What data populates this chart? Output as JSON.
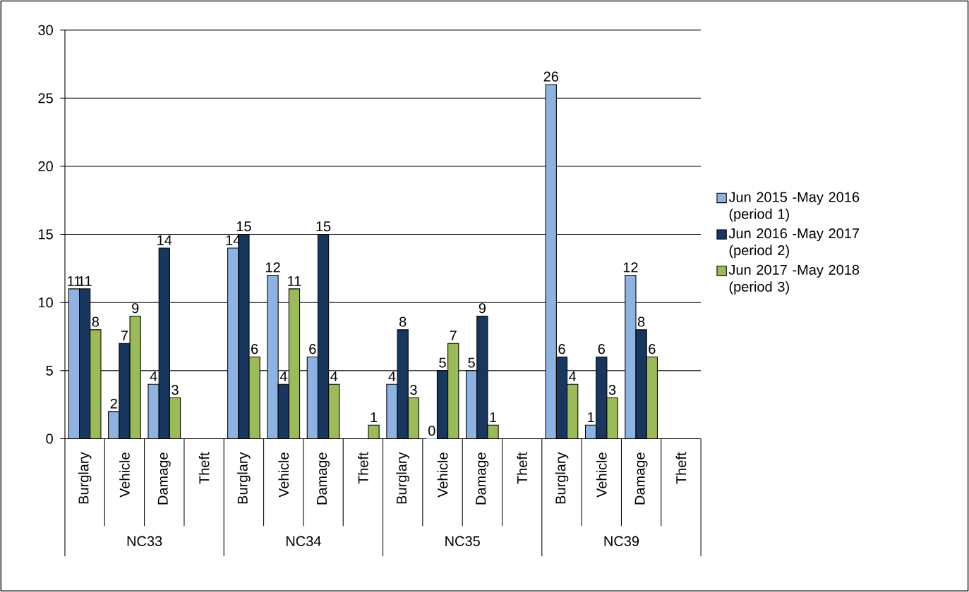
{
  "chart_data": {
    "type": "bar",
    "categories": [
      "Burglary",
      "Vehicle",
      "Damage",
      "Theft",
      "Burglary",
      "Vehicle",
      "Damage",
      "Theft",
      "Burglary",
      "Vehicle",
      "Damage",
      "Theft",
      "Burglary",
      "Vehicle",
      "Damage",
      "Theft"
    ],
    "annotations": [
      "NC33",
      "NC34",
      "NC35",
      "NC39"
    ],
    "series": [
      {
        "name": "Jun 2015 -May 2016 (period 1)",
        "color": "#8db3e2",
        "values": [
          11,
          2,
          4,
          null,
          14,
          12,
          6,
          null,
          4,
          0,
          5,
          null,
          26,
          1,
          12,
          null
        ]
      },
      {
        "name": "Jun 2016 -May 2017 (period 2)",
        "color": "#17375e",
        "values": [
          11,
          7,
          14,
          null,
          15,
          4,
          15,
          null,
          8,
          5,
          9,
          null,
          6,
          6,
          8,
          null
        ]
      },
      {
        "name": "Jun 2017 -May 2018 (period 3)",
        "color": "#9bbb59",
        "values": [
          8,
          9,
          3,
          null,
          6,
          11,
          4,
          1,
          3,
          7,
          1,
          null,
          4,
          3,
          6,
          null
        ]
      }
    ],
    "ylim": [
      0,
      30
    ],
    "yticks": [
      0,
      5,
      10,
      15,
      20,
      25,
      30
    ],
    "grid": "y",
    "legend": "right",
    "data_labels": true
  }
}
